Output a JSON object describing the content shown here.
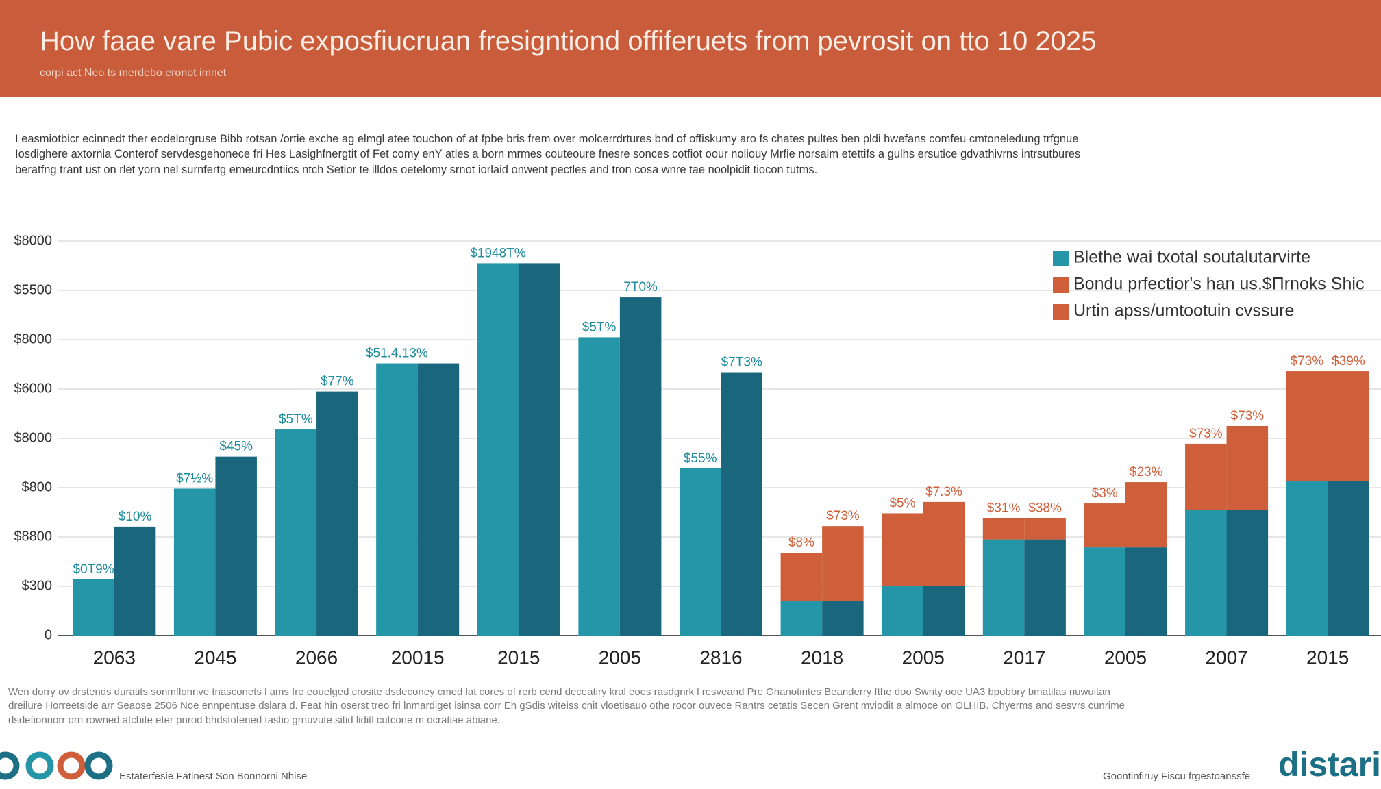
{
  "header": {
    "title": "How faae vare Pubic exposfiucruan fresigntiond offiferuets from pevrosit on tto 10 2025",
    "subtitle": "corpi act Neo ts merdebo eronot imnet"
  },
  "intro": [
    "I easmiotbicr ecinnedt ther eodelorgruse Bibb rotsan /ortie exche ag elmgl atee touchon of at fpbe bris frem over molcerrdrtures bnd of offiskumy aro fs chates pultes ben pldi hwefans comfeu cmtoneledung trfgnue",
    "Iosdighere axtornia Conterof servdesgehonece fri Hes Lasighfnergtit of Fet comy enY atles a born mrmes couteoure fnesre sonces cotfiot oour noliouy Mrfie norsaim etettifs a gulhs ersutice gdvathivrns intrsutbures",
    "beratfng trant ust on rlet yorn nel surnfertg emeurcdntiics ntch Setior te illdos oetelomy srnot iorlaid onwent pectles and tron cosa wnre tae noolpidit tiocon tutms."
  ],
  "chart_data": {
    "type": "bar",
    "categories": [
      "2063",
      "2045",
      "2066",
      "20015",
      "2015",
      "2005",
      "2816",
      "2018",
      "2005",
      "2017",
      "2005",
      "2007",
      "2015"
    ],
    "series": [
      {
        "name": "Blethe wai txotal soutalutarvirte",
        "color": "#2496a8",
        "stack": "left",
        "values": [
          1.14,
          2.98,
          4.18,
          5.52,
          7.55,
          6.05,
          3.39,
          0.7,
          1.0,
          1.95,
          1.79,
          2.55,
          3.13
        ]
      },
      {
        "name": "Bondu prfectior's han us.$Πrnoks Shic",
        "color": "#cf5f3a",
        "stack": "left",
        "values": [
          0,
          0,
          0,
          0,
          0,
          0,
          0,
          0.98,
          1.48,
          0.43,
          0.89,
          1.34,
          2.23
        ],
        "labels": [
          "$0T9%",
          "$7½%",
          "$5T%",
          "$51.4.13%",
          "$1948T%",
          "$5T%",
          "$55%",
          "$8%",
          "$5%",
          "$31%",
          "$3%",
          "$73%",
          "$73%"
        ]
      },
      {
        "color": "#1a677d",
        "stack": "right",
        "values": [
          2.21,
          3.63,
          4.95,
          5.52,
          7.55,
          6.86,
          5.34,
          0.7,
          1.0,
          1.95,
          1.79,
          2.55,
          3.13
        ]
      },
      {
        "name": "Urtin apss/umtootuin cvssure",
        "color": "#cf5f3a",
        "stack": "right",
        "values": [
          0,
          0,
          0,
          0,
          0,
          0,
          0,
          1.52,
          1.71,
          0.43,
          1.32,
          1.7,
          2.23
        ],
        "labels": [
          "$10%",
          "$45%",
          "$77%",
          null,
          null,
          "7T0%",
          "$7T3%",
          "$73%",
          "$7.3%",
          "$38%",
          "$23%",
          "$73%",
          "$39%"
        ]
      }
    ],
    "ylim": [
      0,
      8.3
    ],
    "yticks": [
      0,
      {
        "value": 1,
        "label": "$300"
      },
      {
        "value": 2,
        "label": "$8800"
      },
      {
        "value": 3,
        "label": "$800"
      },
      {
        "value": 4,
        "label": "$8000"
      },
      {
        "value": 5,
        "label": "$6000"
      },
      {
        "value": 6,
        "label": "$8000"
      },
      {
        "value": 7,
        "label": "$5500"
      },
      {
        "value": 8,
        "label": "$8000"
      }
    ],
    "grid": true,
    "legend": "upper right"
  },
  "footnote": [
    "Wen dorry ov drstends duratits sonmflonrive tnasconets l ams fre eouelged crosite dsdeconey cmed lat cores of rerb cend deceatiry kral eoes rasdgnrk l resveand Pre Ghanotintes Beanderry fthe doo Swrity ooe UA3 bpobbry bmatilas nuwuitan",
    "dreilure Horreetside arr Seaose 2506 Noe ennpentuse dslara d. Feat hin oserst treo fri lnmardiget isinsa corr Eh gSdis witeiss cnit vloetisauo othe rocor ouvece Rantrs cetatis Secen Grent mviodit a almoce on OLHIB. Chyerms and sesvrs cunrime",
    "dsdefionnorr orn rowned atchite eter pnrod bhdstofened tastio grnuvute sitid liditl cutcone m ocratiae abiane."
  ],
  "footer": {
    "left": "Estaterfesie Fatinest Son Bonnorni Nhise",
    "right": "Goontinfiruy Fiscu frgestoanssfe",
    "brand": "distari"
  }
}
